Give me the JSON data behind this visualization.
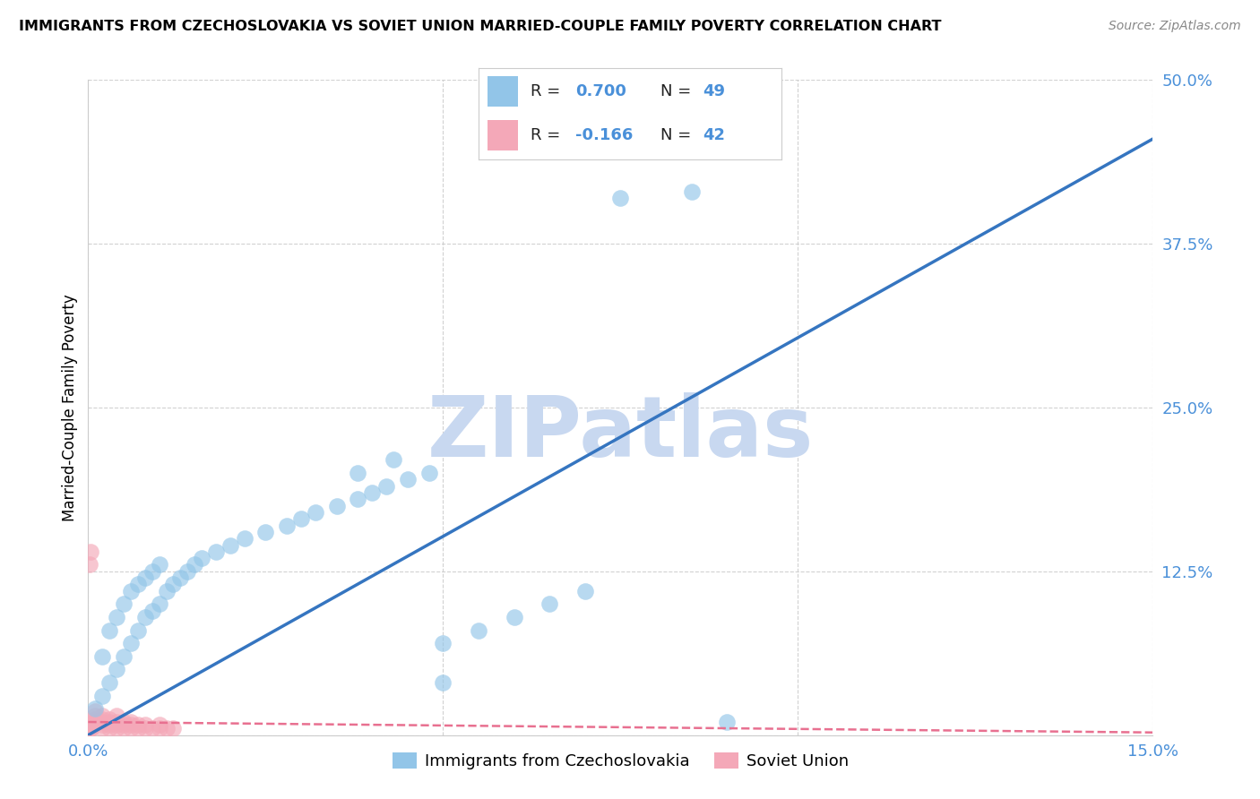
{
  "title": "IMMIGRANTS FROM CZECHOSLOVAKIA VS SOVIET UNION MARRIED-COUPLE FAMILY POVERTY CORRELATION CHART",
  "source": "Source: ZipAtlas.com",
  "ylabel": "Married-Couple Family Poverty",
  "xlim": [
    0.0,
    0.15
  ],
  "ylim": [
    0.0,
    0.5
  ],
  "xtick_vals": [
    0.0,
    0.05,
    0.1,
    0.15
  ],
  "xtick_labels": [
    "0.0%",
    "",
    "",
    "15.0%"
  ],
  "ytick_vals": [
    0.0,
    0.125,
    0.25,
    0.375,
    0.5
  ],
  "ytick_labels": [
    "",
    "12.5%",
    "25.0%",
    "37.5%",
    "50.0%"
  ],
  "blue_R": 0.7,
  "blue_N": 49,
  "pink_R": -0.166,
  "pink_N": 42,
  "blue_color": "#92C5E8",
  "pink_color": "#F4A8B8",
  "blue_line_color": "#3575C0",
  "pink_line_color": "#E87090",
  "tick_color": "#4a90d9",
  "watermark": "ZIPatlas",
  "watermark_color": "#C8D8F0",
  "legend_label_blue": "Immigrants from Czechoslovakia",
  "legend_label_pink": "Soviet Union",
  "blue_x": [
    0.001,
    0.002,
    0.002,
    0.003,
    0.003,
    0.004,
    0.004,
    0.005,
    0.005,
    0.006,
    0.006,
    0.007,
    0.007,
    0.008,
    0.008,
    0.009,
    0.009,
    0.01,
    0.01,
    0.011,
    0.012,
    0.013,
    0.014,
    0.015,
    0.016,
    0.018,
    0.02,
    0.022,
    0.025,
    0.028,
    0.03,
    0.032,
    0.035,
    0.038,
    0.04,
    0.042,
    0.045,
    0.048,
    0.05,
    0.055,
    0.06,
    0.065,
    0.07,
    0.038,
    0.043,
    0.05,
    0.075,
    0.085,
    0.09
  ],
  "blue_y": [
    0.02,
    0.03,
    0.06,
    0.04,
    0.08,
    0.05,
    0.09,
    0.06,
    0.1,
    0.07,
    0.11,
    0.08,
    0.115,
    0.09,
    0.12,
    0.095,
    0.125,
    0.1,
    0.13,
    0.11,
    0.115,
    0.12,
    0.125,
    0.13,
    0.135,
    0.14,
    0.145,
    0.15,
    0.155,
    0.16,
    0.165,
    0.17,
    0.175,
    0.18,
    0.185,
    0.19,
    0.195,
    0.2,
    0.07,
    0.08,
    0.09,
    0.1,
    0.11,
    0.2,
    0.21,
    0.04,
    0.41,
    0.415,
    0.01
  ],
  "pink_x": [
    0.0002,
    0.0003,
    0.0004,
    0.0005,
    0.0006,
    0.0007,
    0.0008,
    0.0009,
    0.001,
    0.001,
    0.001,
    0.001,
    0.002,
    0.002,
    0.002,
    0.002,
    0.002,
    0.003,
    0.003,
    0.003,
    0.003,
    0.004,
    0.004,
    0.004,
    0.004,
    0.005,
    0.005,
    0.005,
    0.006,
    0.006,
    0.006,
    0.007,
    0.007,
    0.008,
    0.008,
    0.009,
    0.01,
    0.01,
    0.011,
    0.012,
    0.0002,
    0.0003
  ],
  "pink_y": [
    0.005,
    0.005,
    0.005,
    0.008,
    0.008,
    0.008,
    0.01,
    0.01,
    0.01,
    0.012,
    0.015,
    0.018,
    0.005,
    0.008,
    0.01,
    0.012,
    0.015,
    0.005,
    0.008,
    0.01,
    0.012,
    0.005,
    0.008,
    0.01,
    0.015,
    0.005,
    0.008,
    0.01,
    0.005,
    0.008,
    0.01,
    0.005,
    0.008,
    0.005,
    0.008,
    0.005,
    0.005,
    0.008,
    0.005,
    0.005,
    0.13,
    0.14
  ],
  "blue_line_x": [
    0.0,
    0.15
  ],
  "blue_line_y": [
    0.0,
    0.455
  ],
  "pink_line_x": [
    0.0,
    0.15
  ],
  "pink_line_y": [
    0.01,
    0.002
  ]
}
